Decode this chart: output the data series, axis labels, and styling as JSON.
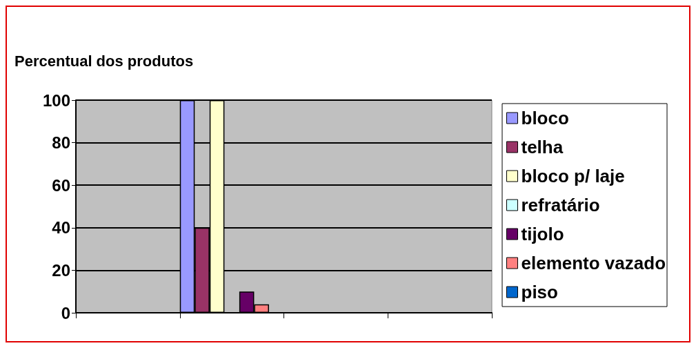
{
  "chart_data": {
    "type": "bar",
    "title": "Percentual dos produtos",
    "categories": [
      null,
      null,
      null,
      null
    ],
    "series": [
      {
        "name": "bloco",
        "color": "#9999ff",
        "values": [
          null,
          100,
          null,
          null
        ]
      },
      {
        "name": "telha",
        "color": "#993366",
        "values": [
          null,
          40,
          null,
          null
        ]
      },
      {
        "name": "bloco p/ laje",
        "color": "#ffffcc",
        "values": [
          null,
          100,
          null,
          null
        ]
      },
      {
        "name": "refratário",
        "color": "#ccffff",
        "values": [
          null,
          0,
          null,
          null
        ]
      },
      {
        "name": "tijolo",
        "color": "#660066",
        "values": [
          null,
          10,
          null,
          null
        ]
      },
      {
        "name": "elemento vazado",
        "color": "#ff8080",
        "values": [
          null,
          4,
          null,
          null
        ]
      },
      {
        "name": "piso",
        "color": "#0066cc",
        "values": [
          null,
          0,
          null,
          null
        ]
      }
    ],
    "ylim": [
      0,
      100
    ],
    "yticks": [
      0,
      20,
      40,
      60,
      80,
      100
    ],
    "grid": "y",
    "legend": "right"
  }
}
